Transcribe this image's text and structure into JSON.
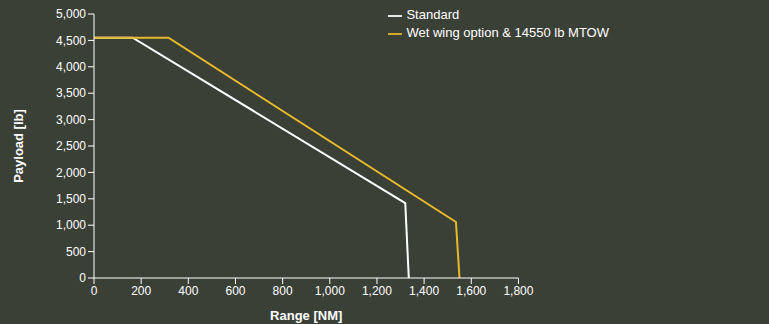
{
  "chart_data": {
    "type": "line",
    "x_label": "Range [NM]",
    "y_label": "Payload [lb]",
    "xlim": [
      0,
      1800
    ],
    "ylim": [
      0,
      5000
    ],
    "xticks": [
      0,
      200,
      400,
      600,
      800,
      {
        "value": 1000,
        "label": "1,000"
      },
      {
        "value": 1200,
        "label": "1,200"
      },
      {
        "value": 1400,
        "label": "1,400"
      },
      {
        "value": 1600,
        "label": "1,600"
      },
      {
        "value": 1800,
        "label": "1,800"
      }
    ],
    "yticks": [
      0,
      500,
      {
        "value": 1000,
        "label": "1,000"
      },
      {
        "value": 1500,
        "label": "1,500"
      },
      {
        "value": 2000,
        "label": "2,000"
      },
      {
        "value": 2500,
        "label": "2,500"
      },
      {
        "value": 3000,
        "label": "3,000"
      },
      {
        "value": 3500,
        "label": "3,500"
      },
      {
        "value": 4000,
        "label": "4,000"
      },
      {
        "value": 4500,
        "label": "4,500"
      },
      {
        "value": 5000,
        "label": "5,000"
      }
    ],
    "grid": false,
    "legend": "upper right",
    "series": [
      {
        "name": "Standard",
        "color": "#ffffff",
        "x": [
          0,
          164,
          1320,
          1335
        ],
        "values": [
          4550,
          4550,
          1420,
          0
        ]
      },
      {
        "name": "Wet wing option & 14550 lb MTOW",
        "color": "#e8b92a",
        "x": [
          0,
          316,
          1535,
          1550
        ],
        "values": [
          4550,
          4550,
          1060,
          0
        ]
      }
    ]
  }
}
